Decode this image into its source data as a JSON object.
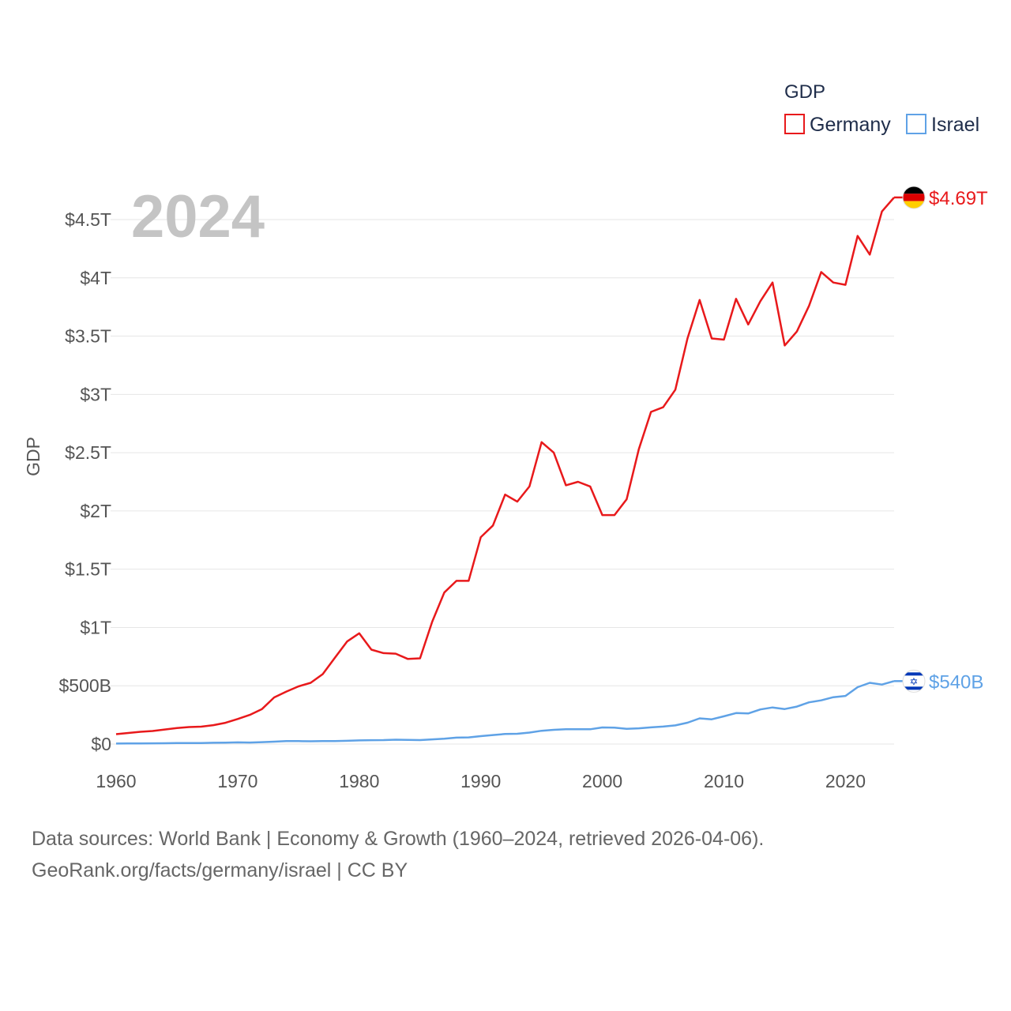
{
  "chart_data": {
    "type": "line",
    "title": "GDP",
    "ylabel": "GDP",
    "xlabel": "",
    "year_label": "2024",
    "xlim": [
      1960,
      2024
    ],
    "ylim": [
      0,
      4.8
    ],
    "x_ticks": [
      1960,
      1970,
      1980,
      1990,
      2000,
      2010,
      2020
    ],
    "y_ticks": [
      {
        "value": 0,
        "label": "$0"
      },
      {
        "value": 0.5,
        "label": "$500B"
      },
      {
        "value": 1,
        "label": "$1T"
      },
      {
        "value": 1.5,
        "label": "$1.5T"
      },
      {
        "value": 2,
        "label": "$2T"
      },
      {
        "value": 2.5,
        "label": "$2.5T"
      },
      {
        "value": 3,
        "label": "$3T"
      },
      {
        "value": 3.5,
        "label": "$3.5T"
      },
      {
        "value": 4,
        "label": "$4T"
      },
      {
        "value": 4.5,
        "label": "$4.5T"
      }
    ],
    "units": "trillions USD",
    "legend_placement": "top-right",
    "x": [
      1960,
      1961,
      1962,
      1963,
      1964,
      1965,
      1966,
      1967,
      1968,
      1969,
      1970,
      1971,
      1972,
      1973,
      1974,
      1975,
      1976,
      1977,
      1978,
      1979,
      1980,
      1981,
      1982,
      1983,
      1984,
      1985,
      1986,
      1987,
      1988,
      1989,
      1990,
      1991,
      1992,
      1993,
      1994,
      1995,
      1996,
      1997,
      1998,
      1999,
      2000,
      2001,
      2002,
      2003,
      2004,
      2005,
      2006,
      2007,
      2008,
      2009,
      2010,
      2011,
      2012,
      2013,
      2014,
      2015,
      2016,
      2017,
      2018,
      2019,
      2020,
      2021,
      2022,
      2023,
      2024
    ],
    "series": [
      {
        "name": "Germany",
        "color": "#e8191b",
        "flag": "germany-flag",
        "end_label": "$4.69T",
        "values": [
          0.085,
          0.095,
          0.105,
          0.112,
          0.125,
          0.137,
          0.146,
          0.149,
          0.162,
          0.182,
          0.215,
          0.25,
          0.3,
          0.4,
          0.45,
          0.495,
          0.525,
          0.6,
          0.74,
          0.88,
          0.95,
          0.81,
          0.78,
          0.775,
          0.73,
          0.735,
          1.05,
          1.3,
          1.4,
          1.4,
          1.775,
          1.875,
          2.14,
          2.08,
          2.21,
          2.59,
          2.5,
          2.22,
          2.25,
          2.21,
          1.965,
          1.965,
          2.1,
          2.53,
          2.85,
          2.89,
          3.04,
          3.48,
          3.81,
          3.48,
          3.47,
          3.82,
          3.6,
          3.8,
          3.96,
          3.42,
          3.54,
          3.76,
          4.05,
          3.96,
          3.94,
          4.36,
          4.2,
          4.57,
          4.69
        ]
      },
      {
        "name": "Israel",
        "color": "#5fa2e6",
        "flag": "israel-flag",
        "end_label": "$540B",
        "values": [
          0.004,
          0.005,
          0.005,
          0.006,
          0.007,
          0.008,
          0.008,
          0.009,
          0.011,
          0.012,
          0.014,
          0.013,
          0.016,
          0.02,
          0.025,
          0.025,
          0.024,
          0.026,
          0.025,
          0.028,
          0.031,
          0.033,
          0.034,
          0.037,
          0.036,
          0.034,
          0.04,
          0.046,
          0.055,
          0.057,
          0.068,
          0.077,
          0.086,
          0.088,
          0.098,
          0.114,
          0.122,
          0.127,
          0.127,
          0.127,
          0.142,
          0.14,
          0.13,
          0.135,
          0.143,
          0.15,
          0.16,
          0.183,
          0.22,
          0.212,
          0.238,
          0.266,
          0.262,
          0.297,
          0.314,
          0.3,
          0.321,
          0.358,
          0.375,
          0.402,
          0.413,
          0.488,
          0.525,
          0.51,
          0.54
        ]
      }
    ]
  },
  "legend": {
    "title": "GDP",
    "items": [
      {
        "label": "Germany",
        "color": "#e8191b"
      },
      {
        "label": "Israel",
        "color": "#5fa2e6"
      }
    ]
  },
  "source": {
    "line1": "Data sources: World Bank | Economy & Growth (1960–2024, retrieved 2026-04-06).",
    "line2": "GeoRank.org/facts/germany/israel | CC BY"
  }
}
